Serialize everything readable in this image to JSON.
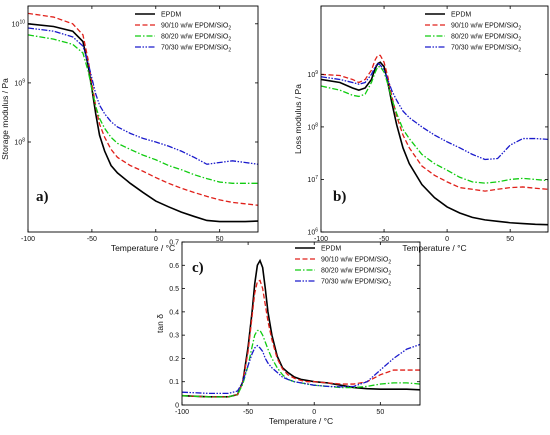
{
  "colors": {
    "EPDM": "#000000",
    "90/10": "#e0201a",
    "80/20": "#11cc11",
    "70/30": "#1a1acc"
  },
  "chart_data": [
    {
      "id": "a",
      "type": "line",
      "panel_label": "a)",
      "xlabel": "Temperature / °C",
      "ylabel": "Storage modulus / Pa",
      "xlim": [
        -100,
        80
      ],
      "ylog": true,
      "ylim": [
        3000000,
        20000000000
      ],
      "xticks": [
        -100,
        -50,
        0,
        50
      ],
      "yticks": [
        {
          "value": 100000000,
          "mant": "10",
          "exp": "8"
        },
        {
          "value": 1000000000,
          "mant": "10",
          "exp": "9"
        },
        {
          "value": 10000000000,
          "mant": "10",
          "exp": "10"
        }
      ],
      "legend_position": "top-right",
      "series": [
        {
          "name": "EPDM",
          "style": "solid",
          "color": "#000000",
          "x": [
            -100,
            -80,
            -65,
            -57,
            -53,
            -50,
            -47,
            -44,
            -40,
            -35,
            -30,
            -20,
            -10,
            0,
            10,
            20,
            30,
            40,
            50,
            60,
            70,
            80
          ],
          "y": [
            10000000000,
            9000000000,
            7500000000,
            5000000000,
            2000000000,
            800000000,
            300000000,
            130000000,
            70000000,
            40000000,
            30000000,
            20000000,
            14000000,
            10000000,
            8000000,
            6500000,
            5500000,
            4700000,
            4500000,
            4500000,
            4500000,
            4600000
          ]
        },
        {
          "name": "90/10 w/w EPDM/SiO",
          "sub": "2",
          "style": "dashed",
          "color": "#e0201a",
          "x": [
            -100,
            -80,
            -65,
            -57,
            -53,
            -50,
            -47,
            -44,
            -40,
            -35,
            -30,
            -20,
            -10,
            0,
            10,
            20,
            30,
            40,
            50,
            60,
            70,
            80
          ],
          "y": [
            15000000000,
            13000000000,
            10000000000,
            6500000000,
            2500000000,
            1000000000,
            400000000,
            200000000,
            120000000,
            75000000,
            55000000,
            40000000,
            32000000,
            25000000,
            20000000,
            16500000,
            14000000,
            12000000,
            10500000,
            9500000,
            9000000,
            8500000
          ]
        },
        {
          "name": "80/20 w/w EPDM/SiO",
          "sub": "2",
          "style": "dashdot",
          "color": "#11cc11",
          "x": [
            -100,
            -80,
            -65,
            -57,
            -53,
            -50,
            -47,
            -44,
            -40,
            -35,
            -30,
            -20,
            -10,
            0,
            10,
            20,
            30,
            40,
            50,
            60,
            70,
            80
          ],
          "y": [
            6500000000,
            5500000000,
            4500000000,
            3200000000,
            1600000000,
            800000000,
            400000000,
            250000000,
            170000000,
            120000000,
            95000000,
            75000000,
            60000000,
            50000000,
            40000000,
            34000000,
            28000000,
            24000000,
            21000000,
            20000000,
            20000000,
            20000000
          ]
        },
        {
          "name": "70/30 w/w EPDM/SiO",
          "sub": "2",
          "style": "dashdotdot",
          "color": "#1a1acc",
          "x": [
            -100,
            -80,
            -65,
            -57,
            -53,
            -50,
            -47,
            -44,
            -40,
            -35,
            -30,
            -20,
            -10,
            0,
            10,
            20,
            30,
            40,
            50,
            60,
            70,
            80
          ],
          "y": [
            8500000000,
            7500000000,
            6000000000,
            4200000000,
            2200000000,
            1200000000,
            650000000,
            420000000,
            300000000,
            220000000,
            180000000,
            140000000,
            115000000,
            100000000,
            85000000,
            70000000,
            55000000,
            42000000,
            45000000,
            48000000,
            45000000,
            42000000
          ]
        }
      ]
    },
    {
      "id": "b",
      "type": "line",
      "panel_label": "b)",
      "xlabel": "Temperature / °C",
      "ylabel": "Loss modulus / Pa",
      "xlim": [
        -100,
        80
      ],
      "ylog": true,
      "ylim": [
        1000000,
        20000000000
      ],
      "xticks": [
        -100,
        -50,
        0,
        50
      ],
      "yticks": [
        {
          "value": 1000000,
          "mant": "10",
          "exp": "6"
        },
        {
          "value": 10000000,
          "mant": "10",
          "exp": "7"
        },
        {
          "value": 100000000,
          "mant": "10",
          "exp": "8"
        },
        {
          "value": 1000000000,
          "mant": "10",
          "exp": "9"
        }
      ],
      "legend_position": "top-right",
      "series": [
        {
          "name": "EPDM",
          "style": "solid",
          "color": "#000000",
          "x": [
            -100,
            -85,
            -75,
            -70,
            -65,
            -60,
            -57,
            -55,
            -53,
            -50,
            -47,
            -44,
            -40,
            -35,
            -30,
            -20,
            -10,
            0,
            10,
            20,
            30,
            40,
            50,
            60,
            70,
            80
          ],
          "y": [
            800000000,
            700000000,
            550000000,
            500000000,
            550000000,
            800000000,
            1300000000,
            1600000000,
            1700000000,
            1400000000,
            700000000,
            300000000,
            110000000,
            40000000,
            20000000,
            8000000,
            4500000,
            3000000,
            2300000,
            1900000,
            1700000,
            1600000,
            1500000,
            1450000,
            1400000,
            1380000
          ]
        },
        {
          "name": "90/10 w/w EPDM/SiO",
          "sub": "2",
          "style": "dashed",
          "color": "#e0201a",
          "x": [
            -100,
            -85,
            -75,
            -70,
            -65,
            -60,
            -57,
            -55,
            -53,
            -50,
            -47,
            -44,
            -40,
            -35,
            -30,
            -20,
            -10,
            0,
            10,
            20,
            30,
            40,
            50,
            60,
            70,
            80
          ],
          "y": [
            1000000000,
            950000000,
            800000000,
            700000000,
            800000000,
            1200000000,
            1900000000,
            2300000000,
            2300000000,
            1700000000,
            900000000,
            400000000,
            160000000,
            70000000,
            40000000,
            18000000,
            12000000,
            9000000,
            7000000,
            6500000,
            6000000,
            6500000,
            7000000,
            7200000,
            6800000,
            6500000
          ]
        },
        {
          "name": "80/20 w/w EPDM/SiO",
          "sub": "2",
          "style": "dashdot",
          "color": "#11cc11",
          "x": [
            -100,
            -85,
            -75,
            -70,
            -65,
            -60,
            -57,
            -55,
            -53,
            -50,
            -47,
            -44,
            -40,
            -35,
            -30,
            -20,
            -10,
            0,
            10,
            20,
            30,
            40,
            50,
            60,
            70,
            80
          ],
          "y": [
            600000000,
            500000000,
            400000000,
            380000000,
            420000000,
            700000000,
            1100000000,
            1400000000,
            1400000000,
            1100000000,
            650000000,
            350000000,
            180000000,
            90000000,
            60000000,
            30000000,
            20000000,
            15000000,
            11000000,
            9000000,
            8500000,
            9000000,
            10000000,
            10500000,
            10000000,
            9500000
          ]
        },
        {
          "name": "70/30 w/w EPDM/SiO",
          "sub": "2",
          "style": "dashdotdot",
          "color": "#1a1acc",
          "x": [
            -100,
            -85,
            -75,
            -70,
            -65,
            -60,
            -57,
            -55,
            -53,
            -50,
            -47,
            -44,
            -40,
            -35,
            -30,
            -20,
            -10,
            0,
            10,
            20,
            30,
            40,
            50,
            60,
            70,
            80
          ],
          "y": [
            900000000,
            800000000,
            700000000,
            650000000,
            700000000,
            1000000000,
            1400000000,
            1600000000,
            1500000000,
            1200000000,
            800000000,
            500000000,
            320000000,
            200000000,
            150000000,
            100000000,
            70000000,
            52000000,
            40000000,
            30000000,
            24000000,
            25000000,
            45000000,
            60000000,
            60000000,
            58000000
          ]
        }
      ]
    },
    {
      "id": "c",
      "type": "line",
      "panel_label": "c)",
      "xlabel": "Temperature / °C",
      "ylabel": "tan δ",
      "xlim": [
        -100,
        80
      ],
      "ylim": [
        0,
        0.7
      ],
      "xticks": [
        -100,
        -50,
        0,
        50
      ],
      "yticks": [
        0,
        0.1,
        0.2,
        0.3,
        0.4,
        0.5,
        0.6,
        0.7
      ],
      "legend_position": "top-right",
      "series": [
        {
          "name": "EPDM",
          "style": "solid",
          "color": "#000000",
          "x": [
            -100,
            -80,
            -65,
            -58,
            -54,
            -50,
            -47,
            -45,
            -43,
            -41,
            -39,
            -37,
            -35,
            -32,
            -28,
            -24,
            -20,
            -15,
            -10,
            -5,
            0,
            10,
            20,
            30,
            40,
            50,
            60,
            70,
            80
          ],
          "y": [
            0.04,
            0.035,
            0.035,
            0.045,
            0.1,
            0.25,
            0.4,
            0.52,
            0.6,
            0.62,
            0.59,
            0.5,
            0.4,
            0.3,
            0.21,
            0.16,
            0.14,
            0.12,
            0.11,
            0.105,
            0.1,
            0.095,
            0.085,
            0.075,
            0.07,
            0.068,
            0.068,
            0.068,
            0.065
          ]
        },
        {
          "name": "90/10 w/w EPDM/SiO",
          "sub": "2",
          "style": "dashed",
          "color": "#e0201a",
          "x": [
            -100,
            -80,
            -65,
            -58,
            -54,
            -50,
            -47,
            -45,
            -43,
            -41,
            -39,
            -37,
            -35,
            -32,
            -28,
            -24,
            -20,
            -15,
            -10,
            -5,
            0,
            10,
            20,
            30,
            40,
            50,
            60,
            70,
            80
          ],
          "y": [
            0.04,
            0.035,
            0.035,
            0.045,
            0.1,
            0.23,
            0.38,
            0.48,
            0.53,
            0.535,
            0.5,
            0.43,
            0.36,
            0.28,
            0.2,
            0.155,
            0.13,
            0.115,
            0.105,
            0.1,
            0.1,
            0.095,
            0.09,
            0.09,
            0.1,
            0.13,
            0.15,
            0.15,
            0.15
          ]
        },
        {
          "name": "80/20 w/w EPDM/SiO",
          "sub": "2",
          "style": "dashdot",
          "color": "#11cc11",
          "x": [
            -100,
            -80,
            -65,
            -58,
            -54,
            -50,
            -47,
            -45,
            -43,
            -41,
            -39,
            -37,
            -35,
            -32,
            -28,
            -24,
            -20,
            -15,
            -10,
            -5,
            0,
            10,
            20,
            30,
            40,
            50,
            60,
            70,
            80
          ],
          "y": [
            0.04,
            0.035,
            0.035,
            0.045,
            0.09,
            0.17,
            0.25,
            0.3,
            0.32,
            0.32,
            0.3,
            0.27,
            0.24,
            0.2,
            0.16,
            0.13,
            0.11,
            0.1,
            0.095,
            0.09,
            0.085,
            0.08,
            0.075,
            0.075,
            0.08,
            0.09,
            0.095,
            0.095,
            0.09
          ]
        },
        {
          "name": "70/30 w/w EPDM/SiO",
          "sub": "2",
          "style": "dashdotdot",
          "color": "#1a1acc",
          "x": [
            -100,
            -80,
            -65,
            -58,
            -54,
            -50,
            -47,
            -45,
            -43,
            -41,
            -39,
            -37,
            -35,
            -32,
            -28,
            -24,
            -20,
            -15,
            -10,
            -5,
            0,
            10,
            20,
            30,
            40,
            50,
            60,
            70,
            80
          ],
          "y": [
            0.055,
            0.05,
            0.05,
            0.06,
            0.1,
            0.17,
            0.22,
            0.245,
            0.255,
            0.245,
            0.23,
            0.2,
            0.18,
            0.16,
            0.14,
            0.12,
            0.11,
            0.1,
            0.095,
            0.09,
            0.085,
            0.08,
            0.078,
            0.08,
            0.1,
            0.15,
            0.2,
            0.24,
            0.26
          ]
        }
      ]
    }
  ]
}
